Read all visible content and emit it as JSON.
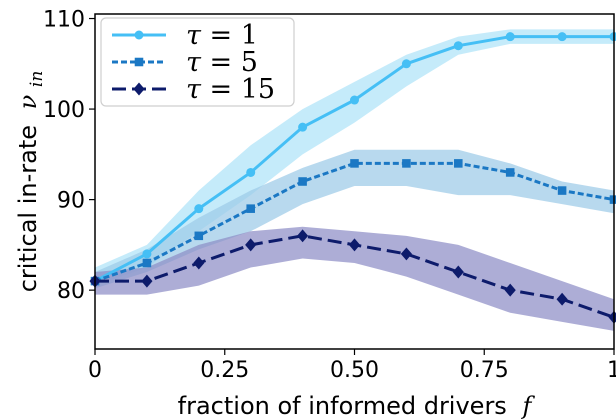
{
  "chart_data": {
    "type": "line",
    "title": "",
    "xlabel": "fraction of informed drivers",
    "xlabel_symbol": "f",
    "ylabel": "critical in-rate",
    "ylabel_symbol": "ν",
    "ylabel_subscript": "in",
    "xlim": [
      0,
      1
    ],
    "ylim": [
      73.5,
      110.5
    ],
    "xticks": [
      0,
      0.25,
      0.5,
      0.75,
      1
    ],
    "xtick_labels": [
      "0",
      "0.25",
      "0.50",
      "0.75",
      "1"
    ],
    "yticks": [
      80,
      90,
      100,
      110
    ],
    "ytick_labels": [
      "80",
      "90",
      "100",
      "110"
    ],
    "grid": false,
    "legend_position": "top-left",
    "x": [
      0,
      0.1,
      0.2,
      0.3,
      0.4,
      0.5,
      0.6,
      0.7,
      0.8,
      0.9,
      1.0
    ],
    "series": [
      {
        "name": "τ = 1",
        "line_style": "solid",
        "marker": "circle",
        "color": "#45bff5",
        "band_color": "#aee3f8",
        "values": [
          81,
          84,
          89,
          93,
          98,
          101,
          105,
          107,
          108,
          108,
          108
        ],
        "lower": [
          80.5,
          82.5,
          86.5,
          90.5,
          95,
          98.5,
          102.5,
          106,
          107.2,
          107.2,
          107.2
        ],
        "upper": [
          82.5,
          85,
          91,
          96,
          100,
          103,
          106,
          108,
          108.8,
          108.8,
          108.8
        ]
      },
      {
        "name": "τ = 5",
        "line_style": "dotted",
        "marker": "square",
        "color": "#1b78c4",
        "band_color": "#9ccbe8",
        "values": [
          81,
          83,
          86,
          89,
          92,
          94,
          94,
          94,
          93,
          91,
          90
        ],
        "lower": [
          80.2,
          82,
          84.5,
          86.5,
          89.5,
          91.5,
          91.5,
          90.5,
          90.5,
          89.5,
          88.5
        ],
        "upper": [
          82,
          84.5,
          88,
          91,
          93.5,
          95.5,
          95.5,
          95.5,
          94,
          92,
          91
        ]
      },
      {
        "name": "τ = 15",
        "line_style": "dashed",
        "marker": "diamond",
        "color": "#0d1b6b",
        "band_color": "#8e8ec6",
        "values": [
          81,
          81,
          83,
          85,
          86,
          85,
          84,
          82,
          80,
          79,
          77
        ],
        "lower": [
          79.5,
          79.5,
          80.5,
          82.5,
          83.5,
          83,
          81.5,
          79.5,
          77.5,
          76.5,
          75.5
        ],
        "upper": [
          82,
          82.5,
          85,
          86.5,
          87,
          86.5,
          86,
          85,
          83,
          81,
          79
        ]
      }
    ]
  }
}
